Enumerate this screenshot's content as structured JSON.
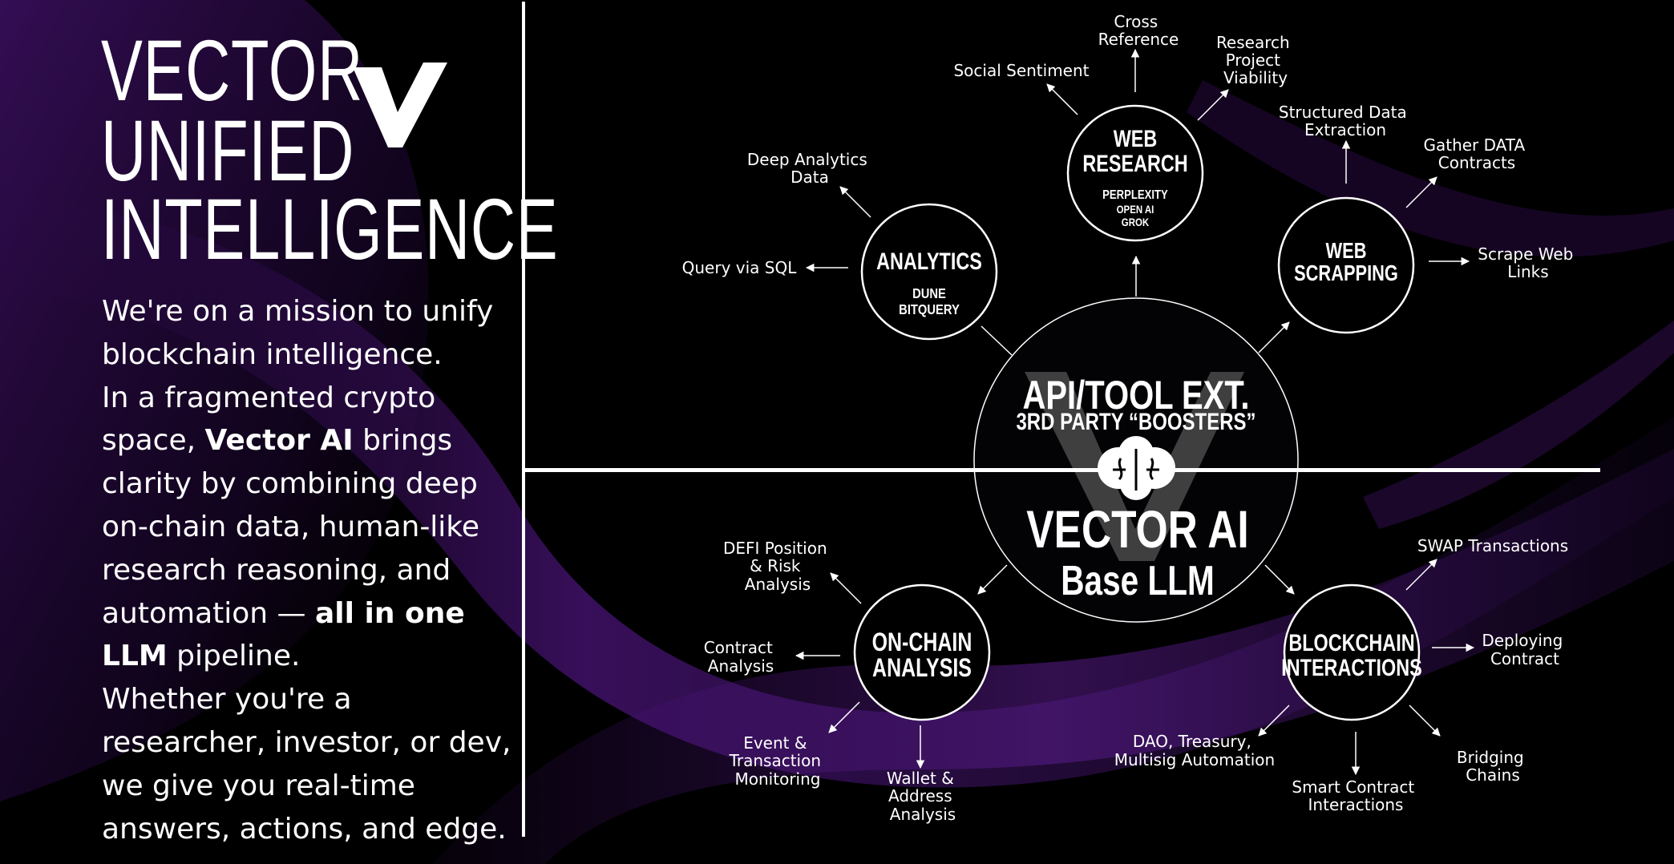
{
  "brand": {
    "title_lines": [
      "VECTOR",
      "UNIFIED",
      "INTELLIGENCE"
    ],
    "logo_icon": "vector-v-logo-icon"
  },
  "mission": {
    "p1": "We're on a mission to unify blockchain intelligence.",
    "p2_a": "In a fragmented crypto space,",
    "p2_b": "Vector AI",
    "p2_c": "brings clarity by combining deep on-chain data, human-like research reasoning, and automation —",
    "p2_d": "all in one LLM",
    "p2_e": "pipeline.",
    "p3": "Whether you're a researcher, investor, or dev, we give you real-time answers, actions, and edge."
  },
  "center": {
    "top_line1": "API/TOOL EXT.",
    "top_line2": "3RD PARTY “BOOSTERS”",
    "bottom_line1": "VECTOR AI",
    "bottom_line2": "Base LLM",
    "icon": "brain-icon"
  },
  "nodes": {
    "web_research": {
      "title1": "WEB",
      "title2": "RESEARCH",
      "sub1": "PERPLEXITY",
      "sub2": "OPEN AI",
      "sub3": "GROK"
    },
    "analytics": {
      "title1": "ANALYTICS",
      "sub1": "DUNE",
      "sub2": "BITQUERY"
    },
    "web_scrapping": {
      "title1": "WEB",
      "title2": "SCRAPPING"
    },
    "on_chain": {
      "title1": "ON-CHAIN",
      "title2": "ANALYSIS"
    },
    "blockchain": {
      "title1": "BLOCKCHAIN",
      "title2": "INTERACTIONS"
    }
  },
  "labels": {
    "cross_reference": [
      "Cross",
      "Reference"
    ],
    "social_sentiment": [
      "Social Sentiment"
    ],
    "research_viability": [
      "Research",
      "Project",
      "Viability"
    ],
    "deep_analytics": [
      "Deep Analytics",
      "Data"
    ],
    "query_sql": [
      "Query via SQL"
    ],
    "structured_data": [
      "Structured Data",
      "Extraction"
    ],
    "gather_data": [
      "Gather DATA",
      "Contracts"
    ],
    "scrape_links": [
      "Scrape Web",
      "Links"
    ],
    "defi_position": [
      "DEFI Position",
      "& Risk",
      "Analysis"
    ],
    "contract_analysis": [
      "Contract",
      "Analysis"
    ],
    "event_monitoring": [
      "Event &",
      "Transaction",
      "Monitoring"
    ],
    "wallet_analysis": [
      "Wallet &",
      "Address",
      "Analysis"
    ],
    "swap_tx": [
      "SWAP Transactions"
    ],
    "deploying": [
      "Deploying",
      "Contract"
    ],
    "bridging": [
      "Bridging",
      "Chains"
    ],
    "smart_contract": [
      "Smart Contract",
      "Interactions"
    ],
    "dao": [
      "DAO, Treasury,",
      "Multisig Automation"
    ]
  },
  "colors": {
    "background": "#000000",
    "accent_purple": "#5a1a8a",
    "line": "#ffffff"
  }
}
